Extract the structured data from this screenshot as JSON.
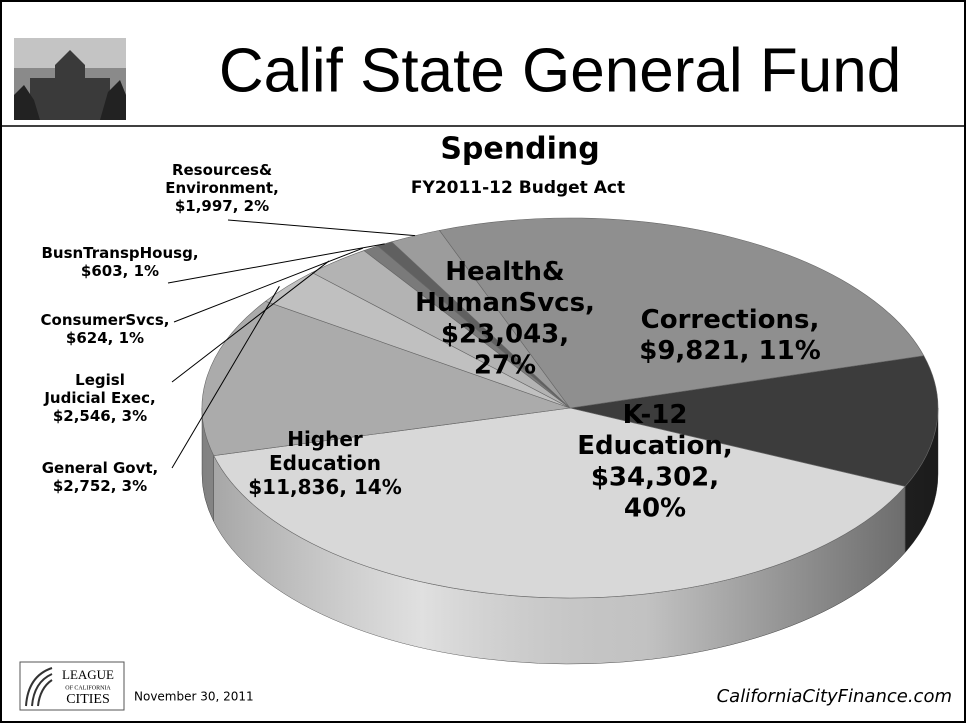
{
  "slide": {
    "title": "Calif State General Fund",
    "logo": [
      "LEAGUE",
      "OF CALIFORNIA",
      "CITIES"
    ],
    "date": "November 30, 2011",
    "website": "CaliforniaCityFinance.com"
  },
  "chart_data": {
    "type": "pie",
    "title": "Spending",
    "subtitle": "FY2011-12 Budget Act",
    "categories": [
      "Corrections,",
      "K-12 Education,",
      "Higher Education",
      "General Govt,",
      "Legisl Judicial Exec,",
      "ConsumerSvcs,",
      "BusnTranspHousg,",
      "Resources& Environment,",
      "Health& HumanSvcs,"
    ],
    "values": [
      9821,
      34302,
      11836,
      2752,
      2546,
      624,
      603,
      1997,
      23043
    ],
    "value_labels": [
      "$9,821, 11%",
      "$34,302, 40%",
      "$11,836, 14%",
      "$2,752, 3%",
      "$2,546, 3%",
      "$624, 1%",
      "$603, 1%",
      "$1,997, 2%",
      "$23,043, 27%"
    ],
    "colors": [
      "#3c3c3c",
      "#d8d8d8",
      "#ababab",
      "#c0c0c0",
      "#b3b3b3",
      "#7a7a7a",
      "#606060",
      "#9c9c9c",
      "#8f8f8f"
    ]
  }
}
